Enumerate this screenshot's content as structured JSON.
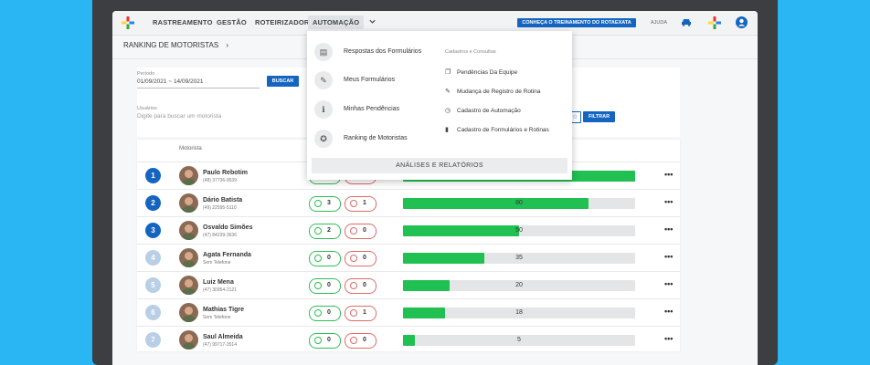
{
  "nav": {
    "items": [
      "RASTREAMENTO",
      "GESTÃO",
      "ROTEIRIZADOR",
      "AUTOMAÇÃO"
    ],
    "promo": "CONHEÇA O TREINAMENTO DO ROTAEXATA",
    "help": "AJUDA"
  },
  "breadcrumb": "RANKING DE MOTORISTAS",
  "filters": {
    "period_label": "Período",
    "period_value": "01/09/2021 ~ 14/09/2021",
    "search_button": "BUSCAR",
    "users_label": "Usuários",
    "users_placeholder": "Digite para buscar um motorista",
    "filter_button": "FILTRAR"
  },
  "table": {
    "header_driver": "Motorista",
    "rows": [
      {
        "rank": "1",
        "name": "Paulo Rebotim",
        "phone": "(48) 37736-9539",
        "good": "",
        "bad": "",
        "score": 100,
        "label": ""
      },
      {
        "rank": "2",
        "name": "Dário Batista",
        "phone": "(49) 22595-5110",
        "good": "3",
        "bad": "1",
        "score": 80,
        "label": "80"
      },
      {
        "rank": "3",
        "name": "Osvaldo Simões",
        "phone": "(47) 84239-3636",
        "good": "2",
        "bad": "0",
        "score": 50,
        "label": "50"
      },
      {
        "rank": "4",
        "name": "Agata Fernanda",
        "phone": "Sem Telefone",
        "good": "0",
        "bad": "0",
        "score": 35,
        "label": "35"
      },
      {
        "rank": "5",
        "name": "Luiz Mena",
        "phone": "(47) 30954-2121",
        "good": "0",
        "bad": "0",
        "score": 20,
        "label": "20"
      },
      {
        "rank": "6",
        "name": "Mathias Tigre",
        "phone": "Sem Telefone",
        "good": "0",
        "bad": "1",
        "score": 18,
        "label": "18"
      },
      {
        "rank": "7",
        "name": "Saul Almeida",
        "phone": "(47) 99717-3514",
        "good": "0",
        "bad": "0",
        "score": 5,
        "label": "5"
      }
    ]
  },
  "menu": {
    "left_items": [
      "Respostas dos Formulários",
      "Meus Formulários",
      "Minhas Pendências",
      "Ranking de Motoristas"
    ],
    "right_header": "Cadastros e Consultas",
    "right_items": [
      "Pendências Da Equipe",
      "Mudança de Registro de Rotina",
      "Cadastro de Automação",
      "Cadastro de Formulários e Rotinas"
    ],
    "footer": "ANÁLISES E RELATÓRIOS"
  },
  "colors": {
    "background": "#29b6f2",
    "primary": "#1565c0",
    "success": "#21c052",
    "danger": "#e06a6a",
    "rank_inactive": "#b8cfe6"
  },
  "more_glyph": "•••",
  "bc_glyph": "›"
}
